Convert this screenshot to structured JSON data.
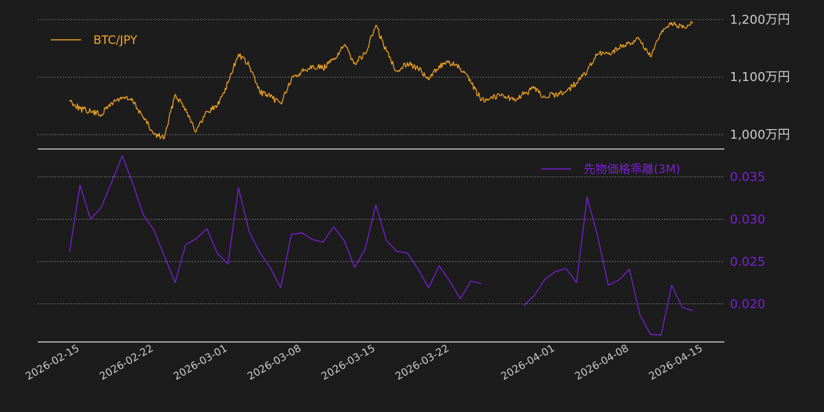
{
  "colors": {
    "background": "#1c1c1c",
    "price": "#f5a623",
    "basis": "#7b1fd6",
    "grid": "#8a8a8a",
    "axis": "#cfcfcf",
    "tick_text": "#cccccc"
  },
  "chart_data": [
    {
      "type": "line",
      "panel": "top",
      "legend": "top-left",
      "grid": true,
      "x_range": [
        "2026-02-11",
        "2026-04-17"
      ],
      "ylim": [
        975,
        1210
      ],
      "yticks": [
        1000,
        1100,
        1200
      ],
      "ytick_labels": [
        "1,000万円",
        "1,100万円",
        "1,200万円"
      ],
      "series": [
        {
          "name": "BTC/JPY",
          "unit": "万円",
          "x": [
            "2026-02-14",
            "2026-02-15",
            "2026-02-16",
            "2026-02-17",
            "2026-02-18",
            "2026-02-19",
            "2026-02-20",
            "2026-02-21",
            "2026-02-22",
            "2026-02-23",
            "2026-02-24",
            "2026-02-25",
            "2026-02-26",
            "2026-02-27",
            "2026-02-28",
            "2026-03-01",
            "2026-03-02",
            "2026-03-03",
            "2026-03-04",
            "2026-03-05",
            "2026-03-06",
            "2026-03-07",
            "2026-03-08",
            "2026-03-09",
            "2026-03-10",
            "2026-03-11",
            "2026-03-12",
            "2026-03-13",
            "2026-03-14",
            "2026-03-15",
            "2026-03-16",
            "2026-03-17",
            "2026-03-18",
            "2026-03-19",
            "2026-03-20",
            "2026-03-21",
            "2026-03-22",
            "2026-03-23",
            "2026-03-24",
            "2026-03-25",
            "2026-03-26",
            "2026-03-27",
            "2026-03-28",
            "2026-03-29",
            "2026-03-30",
            "2026-03-31",
            "2026-04-01",
            "2026-04-02",
            "2026-04-03",
            "2026-04-04",
            "2026-04-05",
            "2026-04-06",
            "2026-04-07",
            "2026-04-08",
            "2026-04-09",
            "2026-04-10",
            "2026-04-11",
            "2026-04-12",
            "2026-04-13",
            "2026-04-14"
          ],
          "y": [
            1060,
            1045,
            1040,
            1035,
            1055,
            1065,
            1058,
            1030,
            1000,
            995,
            1070,
            1045,
            1005,
            1040,
            1050,
            1090,
            1140,
            1120,
            1075,
            1065,
            1055,
            1095,
            1110,
            1120,
            1115,
            1130,
            1155,
            1125,
            1140,
            1190,
            1145,
            1110,
            1125,
            1115,
            1095,
            1120,
            1125,
            1115,
            1090,
            1060,
            1065,
            1070,
            1060,
            1070,
            1080,
            1065,
            1070,
            1075,
            1090,
            1110,
            1140,
            1140,
            1150,
            1160,
            1165,
            1135,
            1175,
            1195,
            1185,
            1193
          ]
        }
      ]
    },
    {
      "type": "line",
      "panel": "bottom",
      "legend": "top-right",
      "grid": true,
      "x_range": [
        "2026-02-11",
        "2026-04-17"
      ],
      "ylim": [
        0.0155,
        0.0383
      ],
      "yticks": [
        0.02,
        0.025,
        0.03,
        0.035
      ],
      "ytick_labels": [
        "0.020",
        "0.025",
        "0.030",
        "0.035"
      ],
      "xticks": [
        "2026-02-15",
        "2026-02-22",
        "2026-03-01",
        "2026-03-08",
        "2026-03-15",
        "2026-03-22",
        "2026-04-01",
        "2026-04-08",
        "2026-04-15"
      ],
      "series": [
        {
          "name": "先物価格乖離(3M)",
          "x": [
            "2026-02-14",
            "2026-02-15",
            "2026-02-16",
            "2026-02-17",
            "2026-02-18",
            "2026-02-19",
            "2026-02-20",
            "2026-02-21",
            "2026-02-22",
            "2026-02-23",
            "2026-02-24",
            "2026-02-25",
            "2026-02-26",
            "2026-02-27",
            "2026-02-28",
            "2026-03-01",
            "2026-03-02",
            "2026-03-03",
            "2026-03-04",
            "2026-03-05",
            "2026-03-06",
            "2026-03-07",
            "2026-03-08",
            "2026-03-09",
            "2026-03-10",
            "2026-03-11",
            "2026-03-12",
            "2026-03-13",
            "2026-03-14",
            "2026-03-15",
            "2026-03-16",
            "2026-03-17",
            "2026-03-18",
            "2026-03-19",
            "2026-03-20",
            "2026-03-21",
            "2026-03-22",
            "2026-03-23",
            "2026-03-24",
            "2026-03-25",
            "2026-03-26",
            null,
            "2026-03-29",
            "2026-03-30",
            "2026-03-31",
            "2026-04-01",
            "2026-04-02",
            "2026-04-03",
            "2026-04-04",
            "2026-04-05",
            "2026-04-06",
            "2026-04-07",
            "2026-04-08",
            "2026-04-09",
            "2026-04-10",
            "2026-04-11",
            "2026-04-12",
            "2026-04-13",
            "2026-04-14"
          ],
          "y": [
            0.0261,
            0.034,
            0.03,
            0.0314,
            0.0344,
            0.0375,
            0.0342,
            0.0305,
            0.0287,
            0.0256,
            0.0225,
            0.027,
            0.0277,
            0.0289,
            0.026,
            0.0247,
            0.0337,
            0.0286,
            0.0261,
            0.0243,
            0.0219,
            0.0282,
            0.0284,
            0.0276,
            0.0273,
            0.0291,
            0.0275,
            0.0243,
            0.0265,
            0.0317,
            0.0275,
            0.0262,
            0.026,
            0.0241,
            0.0219,
            0.0245,
            0.0227,
            0.0206,
            0.0227,
            0.0224,
            null,
            0.0226,
            0.0198,
            0.021,
            0.0229,
            0.0238,
            0.0242,
            0.0225,
            0.0326,
            0.028,
            0.0222,
            0.0228,
            0.0241,
            0.0187,
            0.0164,
            0.0163,
            0.0222,
            0.0196,
            0.0192
          ]
        }
      ]
    }
  ]
}
